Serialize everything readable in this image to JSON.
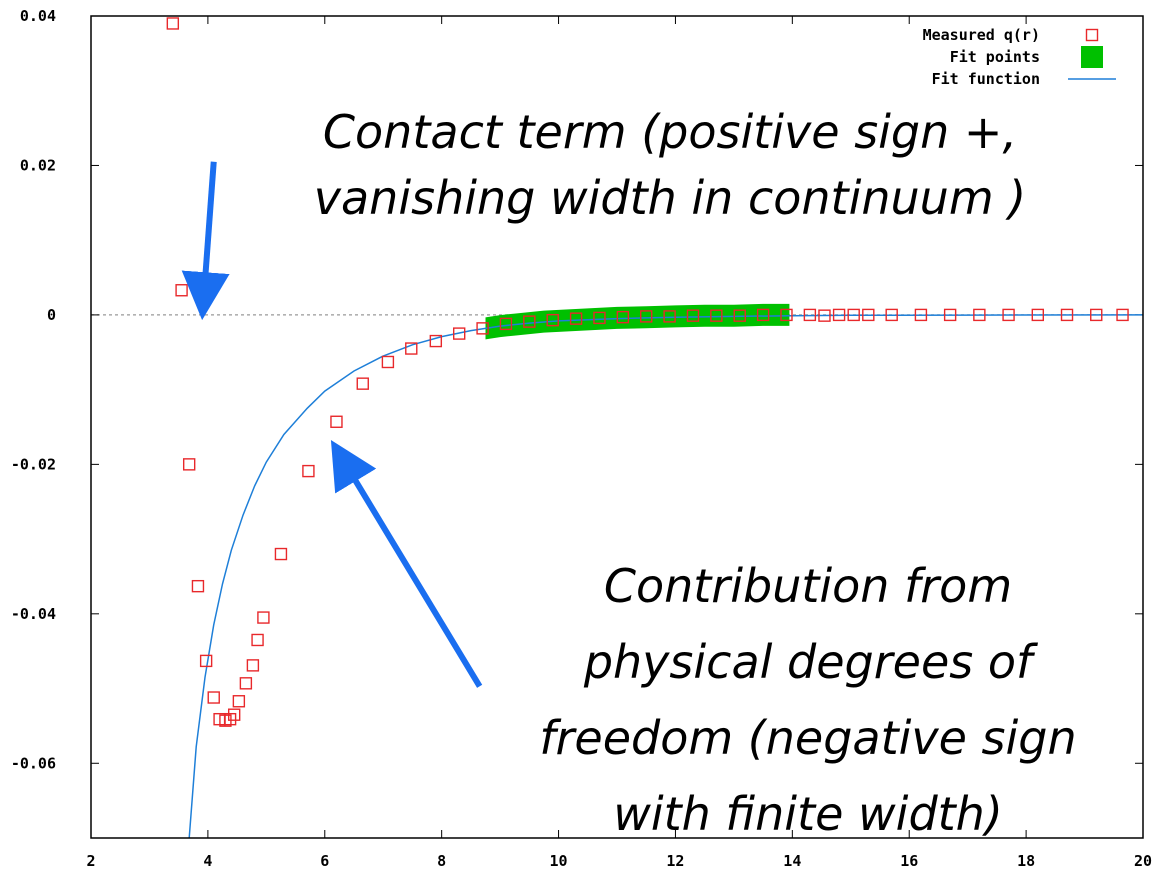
{
  "chart_data": {
    "type": "scatter",
    "xlim": [
      2,
      20
    ],
    "ylim": [
      -0.07,
      0.04
    ],
    "x_ticks": [
      2,
      4,
      6,
      8,
      10,
      12,
      14,
      16,
      18,
      20
    ],
    "x_tick_labels": [
      "2",
      "4",
      "6",
      "8",
      "10",
      "12",
      "14",
      "16",
      "18",
      "20"
    ],
    "y_ticks": [
      0.04,
      0.02,
      0,
      -0.02,
      -0.04,
      -0.06
    ],
    "y_tick_labels": [
      "0.04",
      "0.02",
      "0",
      "-0.02",
      "-0.04",
      "-0.06"
    ],
    "grid": false,
    "zero_line": true,
    "legend_position": "top-right",
    "series": [
      {
        "name": "Measured q(r)",
        "kind": "points",
        "color": "#e8282b",
        "points": [
          [
            3.4,
            0.039
          ],
          [
            3.55,
            0.0033
          ],
          [
            3.68,
            -0.02
          ],
          [
            3.83,
            -0.0363
          ],
          [
            3.97,
            -0.0463
          ],
          [
            4.1,
            -0.0512
          ],
          [
            4.2,
            -0.0541
          ],
          [
            4.3,
            -0.0543
          ],
          [
            4.38,
            -0.0541
          ],
          [
            4.45,
            -0.0535
          ],
          [
            4.53,
            -0.0517
          ],
          [
            4.65,
            -0.0493
          ],
          [
            4.77,
            -0.0469
          ],
          [
            4.85,
            -0.0435
          ],
          [
            4.95,
            -0.0405
          ],
          [
            5.25,
            -0.032
          ],
          [
            5.72,
            -0.0209
          ],
          [
            6.2,
            -0.0143
          ],
          [
            6.65,
            -0.0092
          ],
          [
            7.08,
            -0.0063
          ],
          [
            7.48,
            -0.0045
          ],
          [
            7.9,
            -0.0035
          ],
          [
            8.3,
            -0.0025
          ],
          [
            8.7,
            -0.0018
          ],
          [
            9.1,
            -0.0012
          ],
          [
            9.5,
            -0.0009
          ],
          [
            9.9,
            -0.0007
          ],
          [
            10.3,
            -0.0005
          ],
          [
            10.7,
            -0.0004
          ],
          [
            11.1,
            -0.0003
          ],
          [
            11.5,
            -0.0002
          ],
          [
            11.9,
            -0.0002
          ],
          [
            12.3,
            -0.0001
          ],
          [
            12.7,
            -0.0001
          ],
          [
            13.1,
            -0.0001
          ],
          [
            13.5,
            0.0
          ],
          [
            13.9,
            0.0
          ],
          [
            14.3,
            0.0
          ],
          [
            14.55,
            -0.0001
          ],
          [
            14.8,
            0.0
          ],
          [
            15.05,
            0.0
          ],
          [
            15.3,
            0.0
          ],
          [
            15.7,
            0.0
          ],
          [
            16.2,
            0.0
          ],
          [
            16.7,
            0.0
          ],
          [
            17.2,
            0.0
          ],
          [
            17.7,
            0.0
          ],
          [
            18.2,
            0.0
          ],
          [
            18.7,
            0.0
          ],
          [
            19.2,
            0.0
          ],
          [
            19.65,
            0.0
          ]
        ]
      },
      {
        "name": "Fit points",
        "kind": "band",
        "color": "#00c000",
        "x_range": [
          8.75,
          13.95
        ],
        "points": [
          [
            8.75,
            -0.0018
          ],
          [
            9.0,
            -0.0015
          ],
          [
            9.25,
            -0.0013
          ],
          [
            9.5,
            -0.0011
          ],
          [
            9.75,
            -0.0009
          ],
          [
            10.0,
            -0.0008
          ],
          [
            10.5,
            -0.0006
          ],
          [
            11.0,
            -0.0004
          ],
          [
            11.5,
            -0.0003
          ],
          [
            12.0,
            -0.0002
          ],
          [
            12.5,
            -0.0001
          ],
          [
            13.0,
            -0.0001
          ],
          [
            13.5,
            0.0
          ],
          [
            13.95,
            0.0
          ]
        ]
      },
      {
        "name": "Fit function",
        "kind": "line",
        "color": "#1e7fd8",
        "points": [
          [
            3.68,
            -0.07
          ],
          [
            3.8,
            -0.0578
          ],
          [
            3.95,
            -0.0485
          ],
          [
            4.1,
            -0.0415
          ],
          [
            4.25,
            -0.036
          ],
          [
            4.4,
            -0.0315
          ],
          [
            4.6,
            -0.0268
          ],
          [
            4.8,
            -0.0229
          ],
          [
            5.0,
            -0.0197
          ],
          [
            5.3,
            -0.016
          ],
          [
            5.7,
            -0.0125
          ],
          [
            6.0,
            -0.0102
          ],
          [
            6.5,
            -0.0075
          ],
          [
            7.0,
            -0.0055
          ],
          [
            7.5,
            -0.004
          ],
          [
            8.0,
            -0.0029
          ],
          [
            8.5,
            -0.0021
          ],
          [
            9.0,
            -0.0015
          ],
          [
            9.5,
            -0.0011
          ],
          [
            10.0,
            -0.0008
          ],
          [
            11.0,
            -0.0005
          ],
          [
            12.0,
            -0.0003
          ],
          [
            13.0,
            -0.0002
          ],
          [
            14.0,
            -0.0001
          ],
          [
            15.0,
            -5e-05
          ],
          [
            17.0,
            -2e-05
          ],
          [
            20.0,
            0.0
          ]
        ]
      }
    ],
    "annotations": [
      {
        "lines": [
          "Contact  term  (positive sign +,",
          "vanishing width in continuum )"
        ],
        "arrow_from": [
          4.1,
          0.0205
        ],
        "arrow_to": [
          3.95,
          0.0045
        ],
        "arrow_color": "#1a6ef0"
      },
      {
        "lines": [
          "Contribution from",
          "physical degrees of",
          "freedom (negative sign",
          "with  finite width)"
        ],
        "arrow_from": [
          8.65,
          -0.0497
        ],
        "arrow_to": [
          6.45,
          -0.0212
        ],
        "arrow_color": "#1a6ef0"
      }
    ]
  }
}
